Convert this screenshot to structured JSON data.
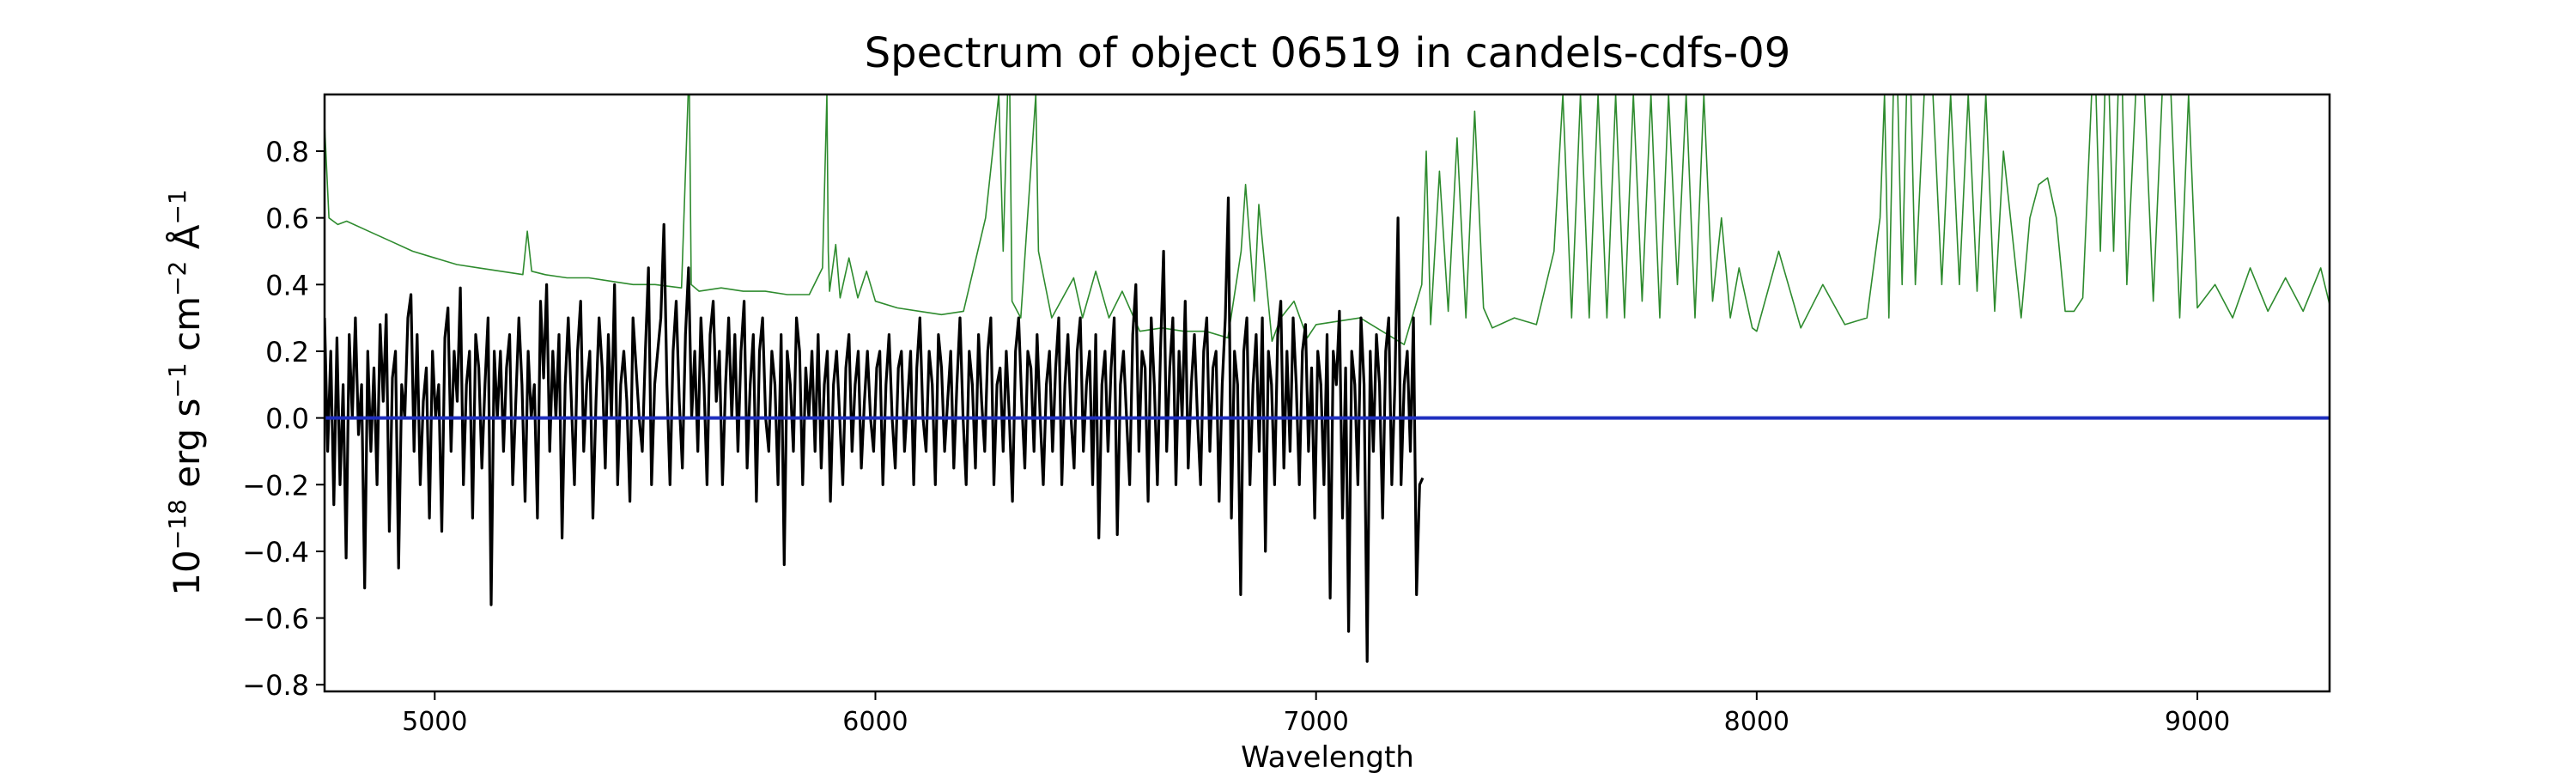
{
  "chart_data": {
    "type": "line",
    "title": "Spectrum of object 06519 in candels-cdfs-09",
    "xlabel": "Wavelength",
    "ylabel": {
      "base": "10",
      "exp": "−18",
      "unit_parts": [
        {
          "text": " erg s",
          "sup": "−1"
        },
        {
          "text": " cm",
          "sup": "−2"
        },
        {
          "text": " Å",
          "sup": "−1"
        }
      ]
    },
    "xlim": [
      4750,
      9300
    ],
    "ylim": [
      -0.82,
      0.97
    ],
    "xticks": [
      5000,
      6000,
      7000,
      8000,
      9000
    ],
    "xtick_labels": [
      "5000",
      "6000",
      "7000",
      "8000",
      "9000"
    ],
    "yticks": [
      -0.8,
      -0.6,
      -0.4,
      -0.2,
      0.0,
      0.2,
      0.4,
      0.6,
      0.8
    ],
    "ytick_labels": [
      "−0.8",
      "−0.6",
      "−0.4",
      "−0.2",
      "0.0",
      "0.2",
      "0.4",
      "0.6",
      "0.8"
    ],
    "grid": false,
    "legend": false,
    "series": [
      {
        "role": "sky-noise",
        "color": "#2e8b2e",
        "x": [
          4750,
          4760,
          4780,
          4800,
          4850,
          4900,
          4950,
          5000,
          5050,
          5100,
          5150,
          5200,
          5210,
          5220,
          5250,
          5300,
          5350,
          5400,
          5450,
          5500,
          5560,
          5575,
          5578,
          5582,
          5600,
          5650,
          5700,
          5750,
          5800,
          5850,
          5880,
          5890,
          5893,
          5896,
          5910,
          5920,
          5940,
          5960,
          5980,
          6000,
          6050,
          6100,
          6150,
          6200,
          6250,
          6280,
          6290,
          6300,
          6305,
          6310,
          6330,
          6364,
          6370,
          6400,
          6450,
          6470,
          6500,
          6530,
          6560,
          6600,
          6650,
          6700,
          6750,
          6800,
          6830,
          6840,
          6860,
          6870,
          6900,
          6920,
          6950,
          6980,
          7000,
          7100,
          7200,
          7240,
          7250,
          7260,
          7280,
          7300,
          7320,
          7340,
          7360,
          7380,
          7400,
          7450,
          7500,
          7540,
          7560,
          7580,
          7600,
          7620,
          7640,
          7660,
          7680,
          7700,
          7720,
          7740,
          7760,
          7780,
          7800,
          7820,
          7840,
          7860,
          7880,
          7900,
          7920,
          7940,
          7960,
          7990,
          8000,
          8050,
          8100,
          8150,
          8200,
          8250,
          8280,
          8290,
          8300,
          8310,
          8320,
          8330,
          8340,
          8350,
          8360,
          8380,
          8400,
          8420,
          8440,
          8460,
          8480,
          8500,
          8520,
          8540,
          8560,
          8600,
          8620,
          8640,
          8660,
          8680,
          8700,
          8720,
          8740,
          8760,
          8770,
          8780,
          8790,
          8800,
          8810,
          8820,
          8830,
          8840,
          8860,
          8880,
          8900,
          8920,
          8940,
          8960,
          8980,
          9000,
          9040,
          9080,
          9120,
          9160,
          9200,
          9240,
          9280,
          9300
        ],
        "y": [
          0.88,
          0.6,
          0.58,
          0.59,
          0.56,
          0.53,
          0.5,
          0.48,
          0.46,
          0.45,
          0.44,
          0.43,
          0.56,
          0.44,
          0.43,
          0.42,
          0.42,
          0.41,
          0.4,
          0.4,
          0.39,
          0.97,
          0.97,
          0.4,
          0.38,
          0.39,
          0.38,
          0.38,
          0.37,
          0.37,
          0.45,
          0.97,
          0.5,
          0.38,
          0.52,
          0.36,
          0.48,
          0.36,
          0.44,
          0.35,
          0.33,
          0.32,
          0.31,
          0.32,
          0.6,
          0.97,
          0.5,
          0.97,
          0.97,
          0.35,
          0.3,
          0.97,
          0.5,
          0.3,
          0.42,
          0.3,
          0.44,
          0.3,
          0.38,
          0.26,
          0.27,
          0.26,
          0.26,
          0.24,
          0.5,
          0.7,
          0.35,
          0.64,
          0.23,
          0.3,
          0.35,
          0.24,
          0.28,
          0.3,
          0.22,
          0.4,
          0.8,
          0.28,
          0.74,
          0.32,
          0.84,
          0.3,
          0.92,
          0.33,
          0.27,
          0.3,
          0.28,
          0.5,
          0.97,
          0.3,
          0.97,
          0.3,
          0.97,
          0.3,
          0.97,
          0.3,
          0.97,
          0.35,
          0.97,
          0.3,
          0.97,
          0.4,
          0.97,
          0.3,
          0.97,
          0.35,
          0.6,
          0.3,
          0.45,
          0.27,
          0.26,
          0.5,
          0.27,
          0.4,
          0.28,
          0.3,
          0.6,
          0.97,
          0.3,
          0.97,
          0.97,
          0.4,
          0.97,
          0.97,
          0.4,
          0.97,
          0.97,
          0.4,
          0.97,
          0.4,
          0.97,
          0.38,
          0.97,
          0.32,
          0.8,
          0.3,
          0.6,
          0.7,
          0.72,
          0.6,
          0.32,
          0.32,
          0.36,
          0.97,
          0.97,
          0.5,
          0.97,
          0.97,
          0.5,
          0.97,
          0.97,
          0.4,
          0.97,
          0.97,
          0.35,
          0.97,
          0.97,
          0.3,
          0.97,
          0.33,
          0.4,
          0.3,
          0.45,
          0.32,
          0.42,
          0.32,
          0.45,
          0.34
        ]
      },
      {
        "role": "spectrum",
        "color": "#000000",
        "x_start": 4750,
        "x_step": 7,
        "y": [
          0.3,
          -0.1,
          0.2,
          -0.26,
          0.24,
          -0.2,
          0.1,
          -0.42,
          0.25,
          0.0,
          0.3,
          -0.05,
          0.1,
          -0.51,
          0.2,
          -0.1,
          0.15,
          -0.2,
          0.28,
          0.05,
          0.31,
          -0.34,
          0.12,
          0.2,
          -0.45,
          0.1,
          0.0,
          0.3,
          0.37,
          -0.1,
          0.25,
          -0.2,
          0.05,
          0.15,
          -0.3,
          0.2,
          0.0,
          0.1,
          -0.34,
          0.24,
          0.33,
          -0.1,
          0.2,
          0.05,
          0.39,
          -0.2,
          0.1,
          0.2,
          -0.3,
          0.25,
          0.15,
          -0.15,
          0.1,
          0.3,
          -0.56,
          0.2,
          0.0,
          0.2,
          -0.1,
          0.15,
          0.25,
          -0.2,
          0.05,
          0.3,
          0.1,
          -0.25,
          0.2,
          0.0,
          0.1,
          -0.3,
          0.35,
          0.12,
          0.4,
          -0.1,
          0.2,
          0.0,
          0.25,
          -0.36,
          0.1,
          0.3,
          0.05,
          -0.2,
          0.2,
          0.35,
          -0.1,
          0.1,
          0.2,
          -0.3,
          0.05,
          0.3,
          0.15,
          -0.15,
          0.25,
          0.0,
          0.4,
          -0.2,
          0.1,
          0.2,
          0.05,
          -0.25,
          0.3,
          0.15,
          0.0,
          -0.1,
          0.2,
          0.45,
          -0.2,
          0.1,
          0.2,
          0.3,
          0.58,
          0.1,
          -0.2,
          0.2,
          0.35,
          0.05,
          -0.15,
          0.25,
          0.45,
          0.0,
          0.2,
          -0.1,
          0.3,
          0.1,
          -0.2,
          0.25,
          0.35,
          0.05,
          0.2,
          -0.2,
          0.1,
          0.3,
          0.0,
          0.25,
          -0.1,
          0.2,
          0.35,
          -0.15,
          0.1,
          0.25,
          -0.25,
          0.2,
          0.3,
          0.0,
          -0.1,
          0.2,
          0.1,
          -0.2,
          0.25,
          -0.44,
          0.2,
          0.1,
          -0.1,
          0.3,
          0.2,
          -0.2,
          0.15,
          0.0,
          0.2,
          -0.1,
          0.25,
          -0.15,
          0.1,
          0.2,
          -0.25,
          0.1,
          0.2,
          0.0,
          -0.2,
          0.15,
          0.25,
          -0.1,
          0.1,
          0.2,
          -0.15,
          0.05,
          0.2,
          0.0,
          -0.1,
          0.15,
          0.2,
          -0.2,
          0.1,
          0.25,
          0.0,
          -0.15,
          0.15,
          0.2,
          -0.1,
          0.05,
          0.2,
          -0.2,
          0.15,
          0.3,
          0.0,
          -0.1,
          0.2,
          0.1,
          -0.2,
          0.25,
          0.15,
          -0.1,
          0.05,
          0.2,
          -0.15,
          0.1,
          0.3,
          0.0,
          -0.2,
          0.2,
          0.1,
          -0.15,
          0.25,
          0.05,
          -0.1,
          0.2,
          0.3,
          -0.2,
          0.1,
          0.15,
          -0.1,
          0.2,
          0.0,
          -0.25,
          0.2,
          0.3,
          0.05,
          -0.15,
          0.2,
          0.15,
          -0.1,
          0.25,
          0.0,
          -0.2,
          0.1,
          0.2,
          -0.1,
          0.15,
          0.3,
          -0.2,
          0.1,
          0.25,
          0.0,
          -0.15,
          0.2,
          0.3,
          -0.1,
          0.1,
          0.2,
          -0.2,
          0.25,
          -0.36,
          0.1,
          0.2,
          -0.1,
          0.15,
          0.3,
          -0.35,
          0.1,
          0.2,
          0.0,
          -0.2,
          0.25,
          0.4,
          -0.1,
          0.2,
          0.15,
          -0.25,
          0.3,
          0.1,
          -0.2,
          0.2,
          0.5,
          -0.1,
          0.15,
          0.3,
          -0.2,
          0.2,
          0.0,
          0.35,
          -0.15,
          0.1,
          0.25,
          0.0,
          -0.2,
          0.2,
          0.3,
          -0.1,
          0.15,
          0.2,
          -0.25,
          0.1,
          0.3,
          0.66,
          -0.3,
          0.2,
          0.1,
          -0.53,
          0.2,
          0.3,
          -0.2,
          0.1,
          0.25,
          -0.1,
          0.3,
          -0.4,
          0.2,
          0.1,
          -0.2,
          0.25,
          0.35,
          -0.15,
          0.2,
          -0.1,
          0.3,
          0.1,
          -0.2,
          0.2,
          0.28,
          -0.1,
          0.15,
          -0.3,
          0.2,
          0.1,
          -0.2,
          0.25,
          -0.54,
          0.2,
          0.1,
          0.32,
          -0.3,
          0.15,
          -0.64,
          0.2,
          0.1,
          -0.2,
          0.3,
          0.1,
          -0.73,
          0.2,
          -0.1,
          0.25,
          0.1,
          -0.3,
          0.2,
          0.3,
          -0.2,
          0.1,
          0.6,
          -0.2,
          0.1,
          0.2,
          -0.1,
          0.3,
          -0.53,
          -0.2,
          -0.18
        ]
      },
      {
        "role": "zero-line",
        "color": "#1f2fbf",
        "x": [
          4750,
          9300
        ],
        "y": [
          0.0,
          0.0
        ]
      }
    ]
  }
}
